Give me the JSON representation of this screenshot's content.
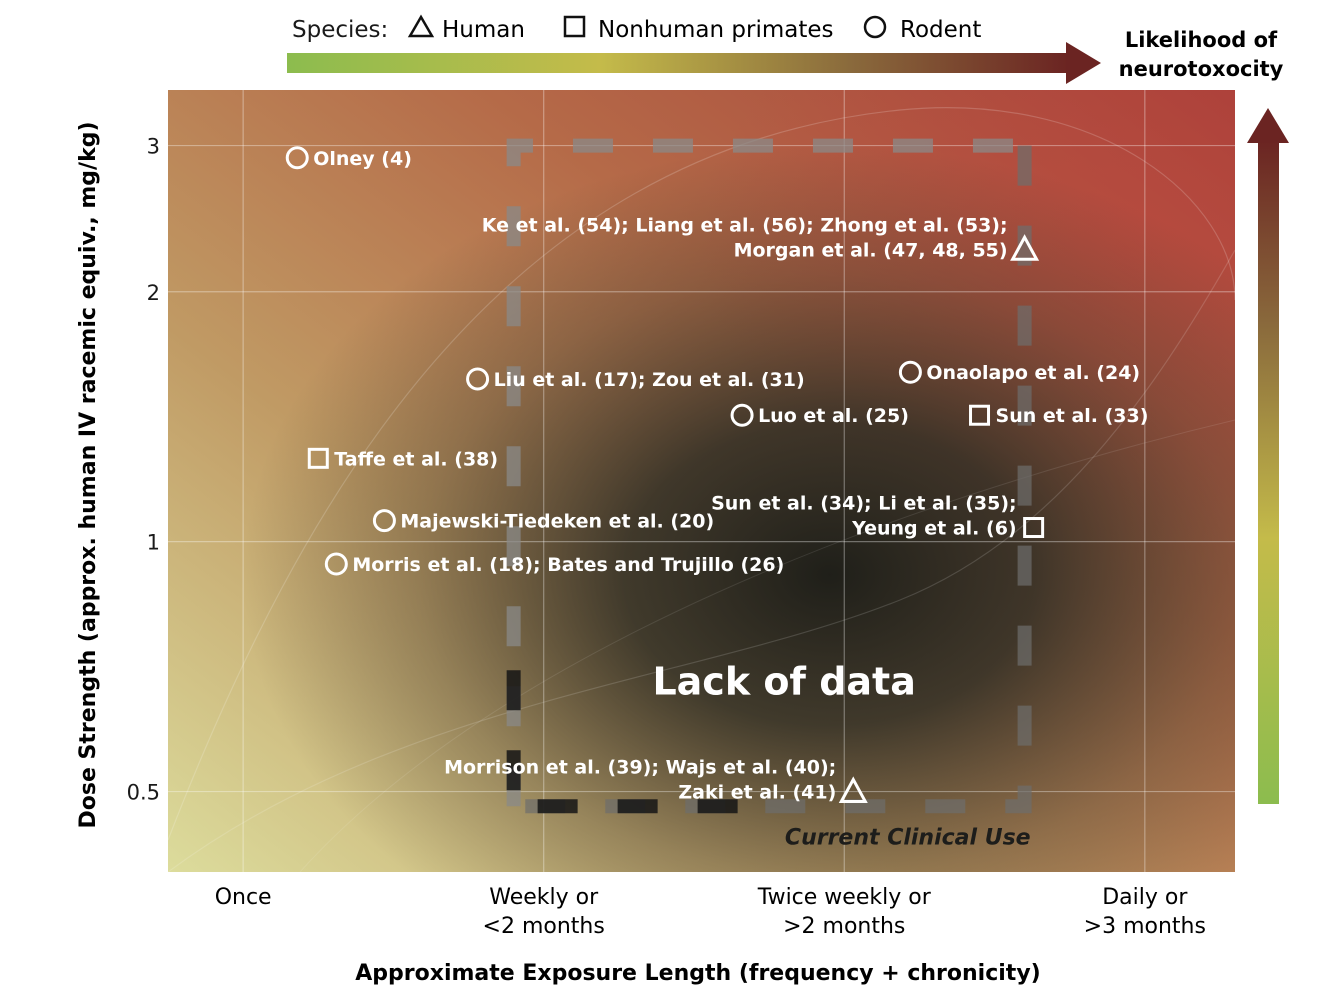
{
  "legend": {
    "title": "Species:",
    "items": [
      {
        "shape": "triangle",
        "label": "Human"
      },
      {
        "shape": "square",
        "label": "Nonhuman primates"
      },
      {
        "shape": "circle",
        "label": "Rodent"
      }
    ],
    "likelihood_title_line1": "Likelihood of",
    "likelihood_title_line2": "neurotoxocity",
    "gradient_colors": [
      "#8cbc4e",
      "#c4bb4a",
      "#8a6a3c",
      "#6b2422"
    ]
  },
  "chart_data": {
    "type": "scatter",
    "xlabel": "Approximate Exposure Length (frequency + chronicity)",
    "ylabel": "Dose Strength (approx. human IV racemic equiv., mg/kg)",
    "y_scale": "log",
    "ylim": [
      0.4,
      3.5
    ],
    "y_ticks": [
      {
        "value": 0.5,
        "label": "0.5"
      },
      {
        "value": 1,
        "label": "1"
      },
      {
        "value": 2,
        "label": "2"
      },
      {
        "value": 3,
        "label": "3"
      }
    ],
    "x_categories": [
      {
        "line1": "Once",
        "line2": ""
      },
      {
        "line1": "Weekly or",
        "line2": "<2 months"
      },
      {
        "line1": "Twice weekly or",
        "line2": ">2 months"
      },
      {
        "line1": "Daily or",
        "line2": ">3 months"
      }
    ],
    "xlim": [
      -0.25,
      3.3
    ],
    "grid": true,
    "points": [
      {
        "species": "rodent",
        "x": 0.18,
        "y": 2.9,
        "label_lines": [
          "Olney (4)"
        ],
        "label_side": "right"
      },
      {
        "species": "rodent",
        "x": 0.78,
        "y": 1.57,
        "label_lines": [
          "Liu et al. (17); Zou et al. (31)"
        ],
        "label_side": "right"
      },
      {
        "species": "rodent",
        "x": 1.66,
        "y": 1.42,
        "label_lines": [
          "Luo et al. (25)"
        ],
        "label_side": "right"
      },
      {
        "species": "rodent",
        "x": 2.22,
        "y": 1.6,
        "label_lines": [
          "Onaolapo et al. (24)"
        ],
        "label_side": "right"
      },
      {
        "species": "primate",
        "x": 2.45,
        "y": 1.42,
        "label_lines": [
          "Sun et al. (33)"
        ],
        "label_side": "right"
      },
      {
        "species": "primate",
        "x": 0.25,
        "y": 1.26,
        "label_lines": [
          "Taffe et al. (38)"
        ],
        "label_side": "right"
      },
      {
        "species": "rodent",
        "x": 0.47,
        "y": 1.06,
        "label_lines": [
          "Majewski-Tiedeken et al. (20)"
        ],
        "label_side": "right"
      },
      {
        "species": "rodent",
        "x": 0.31,
        "y": 0.94,
        "label_lines": [
          "Morris et al. (18); Bates and Trujillo (26)"
        ],
        "label_side": "right"
      },
      {
        "species": "human",
        "x": 2.6,
        "y": 2.25,
        "label_lines": [
          "Ke et al. (54); Liang et al. (56); Zhong et al. (53);",
          "Morgan et al. (47, 48, 55)"
        ],
        "label_side": "left"
      },
      {
        "species": "primate",
        "x": 2.63,
        "y": 1.04,
        "label_lines": [
          "Sun et al. (34); Li et al. (35);",
          "Yeung et al. (6)"
        ],
        "label_side": "left"
      },
      {
        "species": "human",
        "x": 2.03,
        "y": 0.5,
        "label_lines": [
          "Morrison et al. (39); Wajs et al. (40);",
          "Zaki et al. (41)"
        ],
        "label_side": "left"
      }
    ],
    "regions": [
      {
        "name": "current-clinical-use",
        "x_range": [
          0.9,
          2.6
        ],
        "y_range": [
          0.48,
          3.0
        ],
        "label": "Current Clinical Use"
      }
    ],
    "annotations": [
      {
        "text": "Lack of data",
        "x": 1.8,
        "y": 0.68
      }
    ],
    "background_colors": {
      "low": "#d8d99a",
      "mid": "#b08a5a",
      "high": "#b04a3c",
      "void": "#1c1d18"
    }
  }
}
